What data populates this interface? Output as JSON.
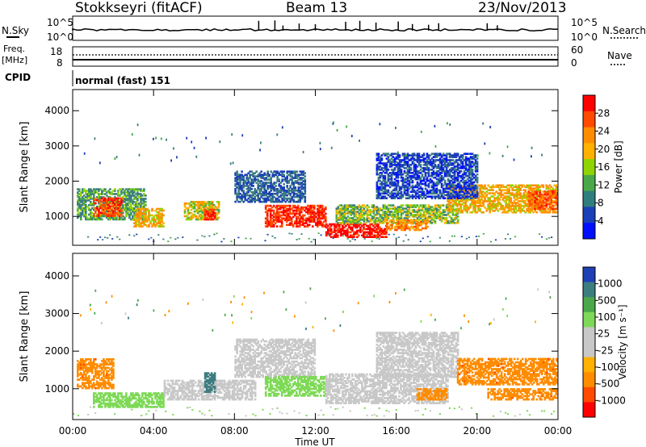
{
  "header": {
    "station": "Stokkseyri (fitACF)",
    "beam": "Beam 13",
    "date": "23/Nov/2013"
  },
  "summary": {
    "nsky_label": "N.Sky",
    "nsky_ticks": [
      "10^5",
      "10^0"
    ],
    "nsearch_label": "N.Search",
    "nsearch_ticks": [
      "10^5",
      "10^0"
    ],
    "freq_label": "Freq.",
    "freq_unit": "[MHz]",
    "freq_ticks": [
      "18",
      "8"
    ],
    "nave_label": "Nave",
    "nave_ticks": [
      "60",
      "0"
    ],
    "cpid_label": "CPID",
    "cpid_value": "normal (fast) 151"
  },
  "chart_data": [
    {
      "type": "heatmap",
      "panel": "power",
      "xlabel": "Time UT",
      "ylabel": "Slant Range [km]",
      "x_ticks": [
        "00:00",
        "04:00",
        "08:00",
        "12:00",
        "16:00",
        "20:00",
        "00:00"
      ],
      "xlim": [
        0,
        24
      ],
      "ylim": [
        180,
        4600
      ],
      "y_ticks": [
        1000,
        2000,
        3000,
        4000
      ],
      "colorbar_label": "Power [dB]",
      "colorbar_ticks": [
        "28",
        "24",
        "20",
        "16",
        "12",
        "8",
        "4"
      ],
      "colorbar_colors": [
        "#ff0000",
        "#ff4a00",
        "#ff8c00",
        "#ffb000",
        "#8fd400",
        "#4aa84a",
        "#2f7e7e",
        "#1b3fb8",
        "#0010ff"
      ],
      "regions": [
        {
          "t0": 0.2,
          "t1": 3.6,
          "r0": 900,
          "r1": 1800,
          "level": 12
        },
        {
          "t0": 1.0,
          "t1": 2.4,
          "r0": 1000,
          "r1": 1500,
          "level": 24
        },
        {
          "t0": 3.0,
          "t1": 4.5,
          "r0": 700,
          "r1": 1200,
          "level": 18
        },
        {
          "t0": 5.5,
          "t1": 7.2,
          "r0": 900,
          "r1": 1400,
          "level": 16
        },
        {
          "t0": 6.5,
          "t1": 7.0,
          "r0": 900,
          "r1": 1200,
          "level": 26
        },
        {
          "t0": 9.5,
          "t1": 12.5,
          "r0": 700,
          "r1": 1300,
          "level": 26
        },
        {
          "t0": 12.5,
          "t1": 15.5,
          "r0": 400,
          "r1": 800,
          "level": 28
        },
        {
          "t0": 13.0,
          "t1": 19.0,
          "r0": 800,
          "r1": 1300,
          "level": 14
        },
        {
          "t0": 15.5,
          "t1": 17.5,
          "r0": 600,
          "r1": 900,
          "level": 20
        },
        {
          "t0": 18.5,
          "t1": 24.0,
          "r0": 1100,
          "r1": 1900,
          "level": 18
        },
        {
          "t0": 22.5,
          "t1": 24.0,
          "r0": 1200,
          "r1": 1700,
          "level": 24
        },
        {
          "t0": 8.0,
          "t1": 11.5,
          "r0": 1400,
          "r1": 2300,
          "level": 8
        },
        {
          "t0": 15.0,
          "t1": 20.0,
          "r0": 1500,
          "r1": 2800,
          "level": 6
        }
      ]
    },
    {
      "type": "heatmap",
      "panel": "velocity",
      "xlabel": "Time UT",
      "ylabel": "Slant Range [km]",
      "x_ticks": [
        "00:00",
        "04:00",
        "08:00",
        "12:00",
        "16:00",
        "20:00",
        "00:00"
      ],
      "xlim": [
        0,
        24
      ],
      "ylim": [
        180,
        4600
      ],
      "y_ticks": [
        1000,
        2000,
        3000,
        4000
      ],
      "colorbar_label": "Velocity [m s⁻¹]",
      "colorbar_ticks": [
        "1000",
        "500",
        "100",
        "25",
        "-25",
        "-100",
        "-500",
        "-1000"
      ],
      "colorbar_colors": [
        "#1f3fb4",
        "#3c7d80",
        "#4aa84a",
        "#7ed957",
        "#c8c8c8",
        "#c8c8c8",
        "#ffb000",
        "#ff8c00",
        "#ff4a00",
        "#ff0000"
      ],
      "regions": [
        {
          "t0": 0.2,
          "t1": 2.0,
          "r0": 1000,
          "r1": 1800,
          "level": -300
        },
        {
          "t0": 1.0,
          "t1": 4.5,
          "r0": 500,
          "r1": 900,
          "level": 60
        },
        {
          "t0": 4.5,
          "t1": 9.0,
          "r0": 700,
          "r1": 1200,
          "level": 0
        },
        {
          "t0": 6.5,
          "t1": 7.0,
          "r0": 900,
          "r1": 1400,
          "level": 400
        },
        {
          "t0": 8.0,
          "t1": 12.0,
          "r0": 1300,
          "r1": 2300,
          "level": 0
        },
        {
          "t0": 9.5,
          "t1": 12.5,
          "r0": 800,
          "r1": 1300,
          "level": 60
        },
        {
          "t0": 12.5,
          "t1": 18.5,
          "r0": 600,
          "r1": 1400,
          "level": 0
        },
        {
          "t0": 15.0,
          "t1": 19.0,
          "r0": 1300,
          "r1": 2500,
          "level": 0
        },
        {
          "t0": 17.0,
          "t1": 18.5,
          "r0": 700,
          "r1": 1000,
          "level": -200
        },
        {
          "t0": 19.0,
          "t1": 24.0,
          "r0": 1100,
          "r1": 1800,
          "level": -300
        },
        {
          "t0": 20.5,
          "t1": 24.0,
          "r0": 700,
          "r1": 1000,
          "level": -300
        }
      ]
    }
  ]
}
